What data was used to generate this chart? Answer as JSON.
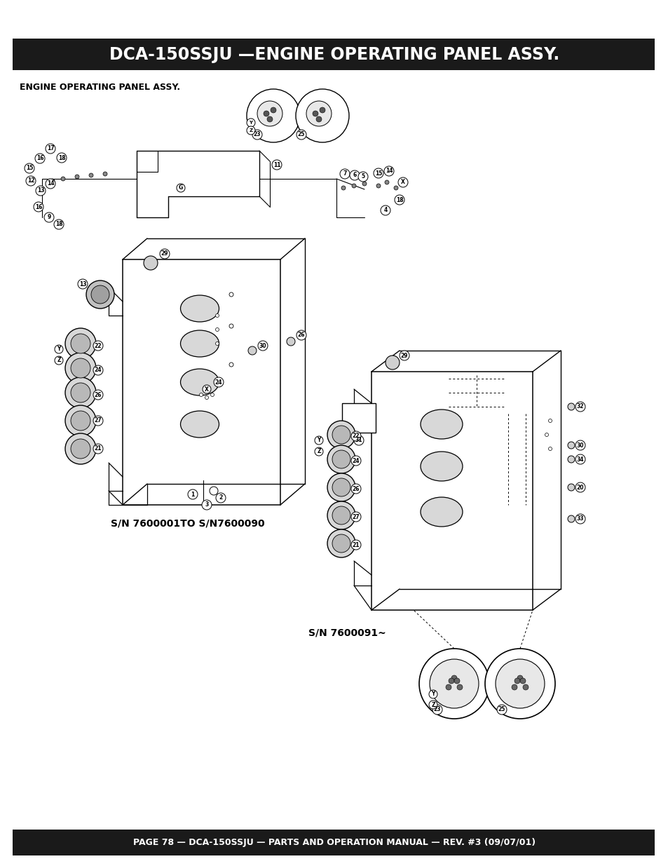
{
  "title": "DCA-150SSJU —ENGINE OPERATING PANEL ASSY.",
  "subtitle": "ENGINE OPERATING PANEL ASSY.",
  "footer": "PAGE 78 — DCA-150SSJU — PARTS AND OPERATION MANUAL — REV. #3 (09/07/01)",
  "header_bg": "#1a1a1a",
  "footer_bg": "#1a1a1a",
  "header_text_color": "#ffffff",
  "footer_text_color": "#ffffff",
  "bg_color": "#ffffff",
  "title_fontsize": 17,
  "subtitle_fontsize": 9,
  "footer_fontsize": 9,
  "sn_label_1": "S/N 7600001TO S/N7600090",
  "sn_label_2": "S/N 7600091~",
  "sn_label_fontsize": 10
}
